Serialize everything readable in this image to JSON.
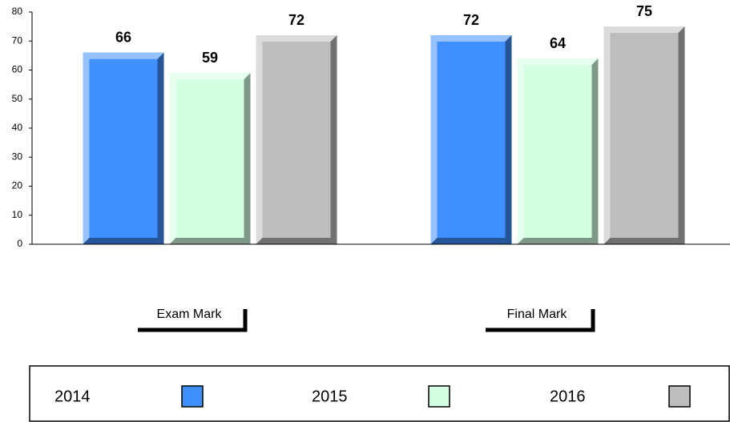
{
  "chart_data": {
    "type": "bar",
    "categories": [
      "Exam Mark",
      "Final Mark"
    ],
    "series": [
      {
        "name": "2014",
        "color": "#3f8fff",
        "values": [
          66,
          72
        ]
      },
      {
        "name": "2015",
        "color": "#d4ffe2",
        "values": [
          59,
          64
        ]
      },
      {
        "name": "2016",
        "color": "#bdbdbd",
        "values": [
          72,
          75
        ]
      }
    ],
    "ylim": [
      0,
      80
    ],
    "yticks": [
      0,
      10,
      20,
      30,
      40,
      50,
      60,
      70,
      80
    ],
    "grid": false,
    "legend": "bottom"
  }
}
